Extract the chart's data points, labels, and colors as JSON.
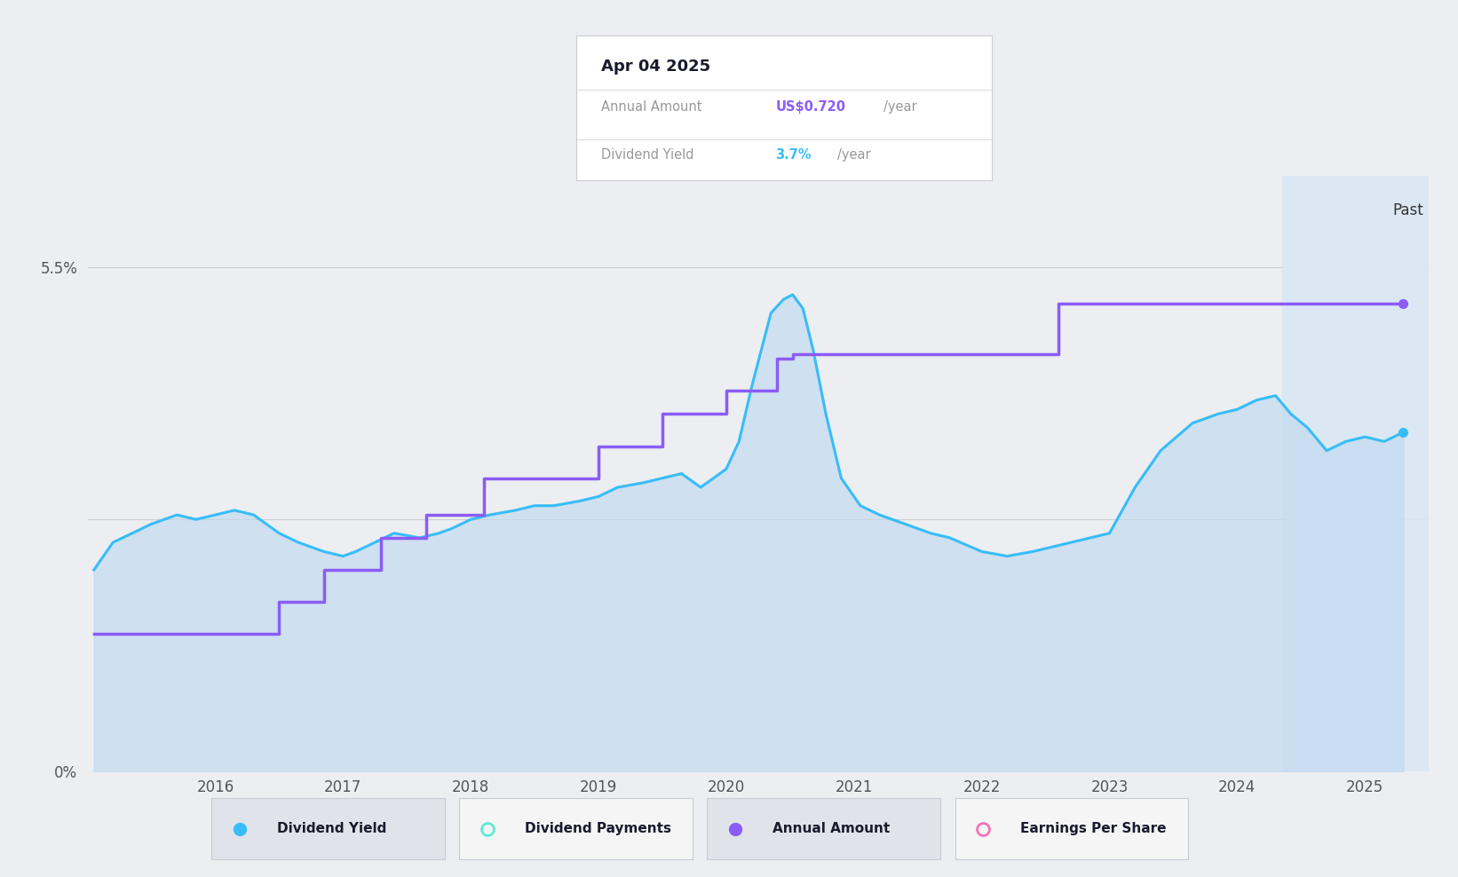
{
  "background_color": "#eceef2",
  "plot_bg_color": "#eceef2",
  "xmin": 2015.0,
  "xmax": 2025.5,
  "ymin": 0.0,
  "ymax": 6.5,
  "ytick_55": 5.5,
  "ytick_0": 0.0,
  "past_start": 2024.35,
  "past_color": "#d8e8f5",
  "past_alpha": 0.85,
  "tooltip": {
    "date": "Apr 04 2025",
    "annual_amount_label": "Annual Amount",
    "annual_amount_value": "US$0.720",
    "annual_amount_unit": "/year",
    "dividend_yield_label": "Dividend Yield",
    "dividend_yield_value": "3.7%",
    "dividend_yield_unit": "/year",
    "amount_color": "#8b5cf6",
    "yield_color": "#38bdf8"
  },
  "legend_items": [
    {
      "label": "Dividend Yield",
      "color": "#38bdf8",
      "filled": true
    },
    {
      "label": "Dividend Payments",
      "color": "#5eead4",
      "filled": false
    },
    {
      "label": "Annual Amount",
      "color": "#8b5cf6",
      "filled": true
    },
    {
      "label": "Earnings Per Share",
      "color": "#f472b6",
      "filled": false
    }
  ],
  "dividend_yield": {
    "x": [
      2015.05,
      2015.2,
      2015.5,
      2015.7,
      2015.85,
      2016.0,
      2016.15,
      2016.3,
      2016.5,
      2016.65,
      2016.85,
      2017.0,
      2017.1,
      2017.25,
      2017.4,
      2017.6,
      2017.75,
      2017.85,
      2018.0,
      2018.15,
      2018.35,
      2018.5,
      2018.65,
      2018.85,
      2019.0,
      2019.15,
      2019.35,
      2019.5,
      2019.65,
      2019.8,
      2020.0,
      2020.1,
      2020.2,
      2020.35,
      2020.45,
      2020.52,
      2020.6,
      2020.68,
      2020.78,
      2020.9,
      2021.05,
      2021.2,
      2021.4,
      2021.6,
      2021.75,
      2022.0,
      2022.2,
      2022.4,
      2022.55,
      2022.7,
      2023.0,
      2023.2,
      2023.4,
      2023.65,
      2023.85,
      2024.0,
      2024.15,
      2024.3,
      2024.42,
      2024.55,
      2024.7,
      2024.85,
      2025.0,
      2025.15,
      2025.3
    ],
    "y": [
      2.2,
      2.5,
      2.7,
      2.8,
      2.75,
      2.8,
      2.85,
      2.8,
      2.6,
      2.5,
      2.4,
      2.35,
      2.4,
      2.5,
      2.6,
      2.55,
      2.6,
      2.65,
      2.75,
      2.8,
      2.85,
      2.9,
      2.9,
      2.95,
      3.0,
      3.1,
      3.15,
      3.2,
      3.25,
      3.1,
      3.3,
      3.6,
      4.2,
      5.0,
      5.15,
      5.2,
      5.05,
      4.6,
      3.9,
      3.2,
      2.9,
      2.8,
      2.7,
      2.6,
      2.55,
      2.4,
      2.35,
      2.4,
      2.45,
      2.5,
      2.6,
      3.1,
      3.5,
      3.8,
      3.9,
      3.95,
      4.05,
      4.1,
      3.9,
      3.75,
      3.5,
      3.6,
      3.65,
      3.6,
      3.7
    ]
  },
  "annual_amount": {
    "x": [
      2015.05,
      2016.5,
      2016.5,
      2016.85,
      2016.85,
      2017.3,
      2017.3,
      2017.65,
      2017.65,
      2018.1,
      2018.1,
      2019.0,
      2019.0,
      2019.5,
      2019.5,
      2020.0,
      2020.0,
      2020.4,
      2020.4,
      2020.52,
      2020.52,
      2022.6,
      2022.6,
      2025.3
    ],
    "y": [
      1.5,
      1.5,
      1.85,
      1.85,
      2.2,
      2.2,
      2.55,
      2.55,
      2.8,
      2.8,
      3.2,
      3.2,
      3.55,
      3.55,
      3.9,
      3.9,
      4.15,
      4.15,
      4.5,
      4.5,
      4.55,
      4.55,
      5.1,
      5.1
    ]
  },
  "annual_amount_color": "#8b5cf6",
  "dividend_yield_color": "#38bdf8",
  "fill_color": "#bdd8f0",
  "fill_alpha": 0.6
}
